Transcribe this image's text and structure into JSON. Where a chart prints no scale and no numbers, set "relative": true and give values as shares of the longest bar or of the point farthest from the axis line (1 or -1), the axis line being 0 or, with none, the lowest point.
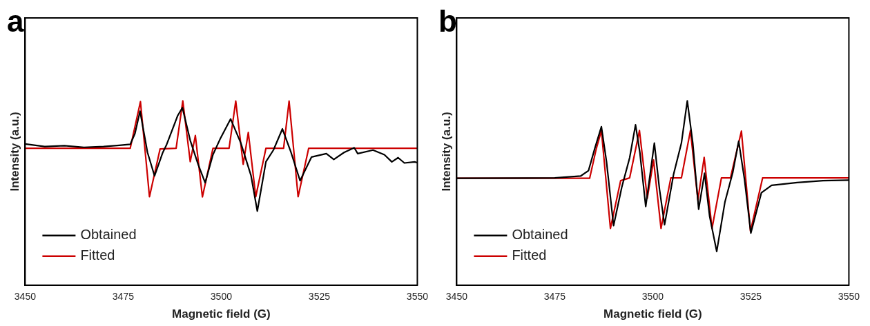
{
  "chart_data": [
    {
      "type": "line",
      "title": "a",
      "xlabel": "Magnetic field (G)",
      "ylabel": "Intensity (a.u.)",
      "xlim": [
        3450,
        3550
      ],
      "xticks": [
        3450,
        3475,
        3500,
        3525,
        3550
      ],
      "relative": true,
      "tick_labels": "x",
      "legend": "bottom left",
      "marker": "none",
      "series": [
        {
          "name": "Obtained",
          "color": "#000000",
          "x": [
            3450,
            3455,
            3460,
            3465,
            3470,
            3474,
            3476.8,
            3478.0,
            3479.3,
            3481.2,
            3483.0,
            3485.1,
            3486.0,
            3488.9,
            3490.1,
            3492.1,
            3494.1,
            3495.9,
            3497.9,
            3499.8,
            3502.4,
            3505.0,
            3507.6,
            3509.2,
            3511.4,
            3513.3,
            3515.6,
            3517.8,
            3520.1,
            3523.0,
            3526.8,
            3528.7,
            3531.3,
            3533.9,
            3534.8,
            3538.7,
            3541.6,
            3543.5,
            3545.1,
            3546.7,
            3549.3,
            3550
          ],
          "values": [
            0.766,
            0.752,
            0.757,
            0.748,
            0.752,
            0.759,
            0.764,
            0.823,
            0.944,
            0.72,
            0.593,
            0.72,
            0.759,
            0.92,
            0.963,
            0.785,
            0.656,
            0.556,
            0.709,
            0.797,
            0.902,
            0.771,
            0.594,
            0.402,
            0.67,
            0.733,
            0.848,
            0.72,
            0.567,
            0.695,
            0.714,
            0.682,
            0.72,
            0.746,
            0.714,
            0.733,
            0.708,
            0.669,
            0.692,
            0.663,
            0.669,
            0.665
          ]
        },
        {
          "name": "Fitted",
          "color": "#cc0000",
          "x": [
            3450,
            3476.8,
            3479.4,
            3481.7,
            3484.4,
            3488.5,
            3490.2,
            3492.1,
            3493.4,
            3495.2,
            3497.9,
            3502.0,
            3503.7,
            3505.6,
            3506.9,
            3508.8,
            3511.4,
            3515.9,
            3517.3,
            3519.6,
            3522.3,
            3550
          ],
          "values": [
            0.743,
            0.743,
            0.996,
            0.48,
            0.739,
            0.743,
            1,
            0.67,
            0.812,
            0.479,
            0.743,
            0.743,
            0.999,
            0.656,
            0.829,
            0.48,
            0.743,
            0.743,
            0.999,
            0.48,
            0.743,
            0.743
          ]
        }
      ]
    },
    {
      "type": "line",
      "title": "b",
      "xlabel": "Magnetic field (G)",
      "ylabel": "Intensity (a.u.)",
      "xlim": [
        3450,
        3550
      ],
      "xticks": [
        3450,
        3475,
        3500,
        3525,
        3550
      ],
      "relative": true,
      "tick_labels": "x",
      "legend": "bottom left",
      "marker": "none",
      "series": [
        {
          "name": "Obtained",
          "color": "#000000",
          "x": [
            3450,
            3475.0,
            3481.6,
            3483.6,
            3485.2,
            3486.9,
            3488.2,
            3490.0,
            3492.1,
            3494.1,
            3495.6,
            3496.7,
            3498.2,
            3500.4,
            3501.7,
            3503.0,
            3505.3,
            3507.3,
            3508.8,
            3510.2,
            3511.7,
            3513.2,
            3514.5,
            3516.3,
            3518.4,
            3520.4,
            3521.9,
            3523.4,
            3525.0,
            3527.7,
            3530.3,
            3536.8,
            3543.4,
            3550
          ],
          "values": [
            0.58,
            0.582,
            0.592,
            0.621,
            0.741,
            0.86,
            0.671,
            0.323,
            0.532,
            0.691,
            0.87,
            0.721,
            0.427,
            0.771,
            0.522,
            0.328,
            0.601,
            0.771,
            1,
            0.771,
            0.412,
            0.607,
            0.373,
            0.183,
            0.452,
            0.612,
            0.781,
            0.572,
            0.283,
            0.502,
            0.542,
            0.557,
            0.567,
            0.57
          ]
        },
        {
          "name": "Fitted",
          "color": "#cc0000",
          "x": [
            3450,
            3483.9,
            3485.6,
            3486.9,
            3489.2,
            3491.8,
            3494.1,
            3496.6,
            3498.6,
            3500.2,
            3502.1,
            3504.6,
            3507.3,
            3509.6,
            3511.5,
            3513.1,
            3515.1,
            3517.5,
            3519.8,
            3522.6,
            3524.9,
            3528.0,
            3550
          ],
          "values": [
            0.58,
            0.58,
            0.741,
            0.839,
            0.308,
            0.567,
            0.582,
            0.839,
            0.472,
            0.679,
            0.308,
            0.582,
            0.582,
            0.839,
            0.462,
            0.693,
            0.308,
            0.582,
            0.582,
            0.836,
            0.293,
            0.582,
            0.582
          ]
        }
      ]
    }
  ]
}
